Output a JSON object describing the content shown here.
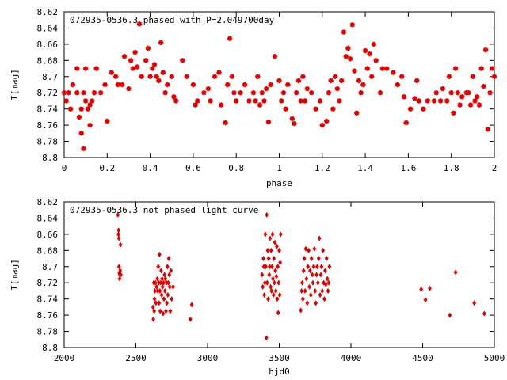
{
  "chart_data": [
    {
      "type": "scatter",
      "title": "072935-0536.3 phased with P=2.049700day",
      "xlabel": "phase",
      "ylabel": "I[mag]",
      "xlim": [
        0,
        2
      ],
      "ylim": [
        8.62,
        8.8
      ],
      "y_inverted": true,
      "grid": false,
      "marker_color": "#e00000",
      "marker": "star",
      "x_ticks": [
        "0",
        "0.2",
        "0.4",
        "0.6",
        "0.8",
        "1",
        "1.2",
        "1.4",
        "1.6",
        "1.8",
        "2"
      ],
      "y_ticks": [
        "8.62",
        "8.64",
        "8.66",
        "8.68",
        "8.7",
        "8.72",
        "8.74",
        "8.76",
        "8.78",
        "8.8"
      ],
      "x_tick_values": [
        0,
        0.2,
        0.4,
        0.6,
        0.8,
        1,
        1.2,
        1.4,
        1.6,
        1.8,
        2
      ],
      "y_tick_values": [
        8.62,
        8.64,
        8.66,
        8.68,
        8.7,
        8.72,
        8.74,
        8.76,
        8.78,
        8.8
      ],
      "points": [
        [
          0.0,
          8.72
        ],
        [
          0.01,
          8.73
        ],
        [
          0.02,
          8.72
        ],
        [
          0.03,
          8.74
        ],
        [
          0.04,
          8.71
        ],
        [
          0.06,
          8.72
        ],
        [
          0.06,
          8.69
        ],
        [
          0.07,
          8.75
        ],
        [
          0.08,
          8.77
        ],
        [
          0.08,
          8.74
        ],
        [
          0.09,
          8.72
        ],
        [
          0.09,
          8.789
        ],
        [
          0.1,
          8.69
        ],
        [
          0.1,
          8.73
        ],
        [
          0.11,
          8.74
        ],
        [
          0.12,
          8.735
        ],
        [
          0.12,
          8.76
        ],
        [
          0.13,
          8.73
        ],
        [
          0.14,
          8.72
        ],
        [
          0.15,
          8.69
        ],
        [
          0.17,
          8.72
        ],
        [
          0.19,
          8.71
        ],
        [
          0.2,
          8.755
        ],
        [
          0.22,
          8.695
        ],
        [
          0.24,
          8.7
        ],
        [
          0.25,
          8.71
        ],
        [
          0.27,
          8.71
        ],
        [
          0.28,
          8.675
        ],
        [
          0.3,
          8.715
        ],
        [
          0.31,
          8.68
        ],
        [
          0.32,
          8.69
        ],
        [
          0.33,
          8.67
        ],
        [
          0.34,
          8.688
        ],
        [
          0.35,
          8.635
        ],
        [
          0.36,
          8.7
        ],
        [
          0.38,
          8.68
        ],
        [
          0.39,
          8.665
        ],
        [
          0.4,
          8.7
        ],
        [
          0.41,
          8.69
        ],
        [
          0.42,
          8.685
        ],
        [
          0.43,
          8.7
        ],
        [
          0.44,
          8.705
        ],
        [
          0.45,
          8.658
        ],
        [
          0.46,
          8.695
        ],
        [
          0.47,
          8.72
        ],
        [
          0.48,
          8.71
        ],
        [
          0.5,
          8.7
        ],
        [
          0.51,
          8.725
        ],
        [
          0.52,
          8.73
        ],
        [
          0.55,
          8.68
        ],
        [
          0.57,
          8.7
        ],
        [
          0.6,
          8.71
        ],
        [
          0.61,
          8.735
        ],
        [
          0.62,
          8.73
        ],
        [
          0.65,
          8.72
        ],
        [
          0.67,
          8.715
        ],
        [
          0.68,
          8.73
        ],
        [
          0.7,
          8.7
        ],
        [
          0.72,
          8.695
        ],
        [
          0.73,
          8.735
        ],
        [
          0.75,
          8.757
        ],
        [
          0.76,
          8.71
        ],
        [
          0.77,
          8.653
        ],
        [
          0.78,
          8.7
        ],
        [
          0.79,
          8.72
        ],
        [
          0.8,
          8.73
        ],
        [
          0.82,
          8.72
        ],
        [
          0.84,
          8.71
        ],
        [
          0.86,
          8.73
        ],
        [
          0.88,
          8.72
        ],
        [
          0.89,
          8.73
        ],
        [
          0.9,
          8.7
        ],
        [
          0.91,
          8.735
        ],
        [
          0.92,
          8.72
        ],
        [
          0.93,
          8.73
        ],
        [
          0.94,
          8.715
        ],
        [
          0.95,
          8.756
        ],
        [
          0.96,
          8.71
        ],
        [
          0.98,
          8.675
        ],
        [
          1.0,
          8.705
        ],
        [
          1.01,
          8.73
        ],
        [
          1.02,
          8.72
        ],
        [
          1.03,
          8.74
        ],
        [
          1.04,
          8.71
        ],
        [
          1.06,
          8.752
        ],
        [
          1.07,
          8.758
        ],
        [
          1.08,
          8.72
        ],
        [
          1.09,
          8.705
        ],
        [
          1.1,
          8.73
        ],
        [
          1.11,
          8.7
        ],
        [
          1.12,
          8.73
        ],
        [
          1.13,
          8.715
        ],
        [
          1.15,
          8.72
        ],
        [
          1.17,
          8.74
        ],
        [
          1.19,
          8.73
        ],
        [
          1.2,
          8.76
        ],
        [
          1.22,
          8.755
        ],
        [
          1.23,
          8.72
        ],
        [
          1.24,
          8.705
        ],
        [
          1.25,
          8.74
        ],
        [
          1.26,
          8.7
        ],
        [
          1.27,
          8.715
        ],
        [
          1.28,
          8.73
        ],
        [
          1.29,
          8.705
        ],
        [
          1.3,
          8.645
        ],
        [
          1.31,
          8.675
        ],
        [
          1.32,
          8.665
        ],
        [
          1.33,
          8.678
        ],
        [
          1.34,
          8.636
        ],
        [
          1.35,
          8.693
        ],
        [
          1.36,
          8.745
        ],
        [
          1.37,
          8.705
        ],
        [
          1.38,
          8.72
        ],
        [
          1.39,
          8.71
        ],
        [
          1.4,
          8.668
        ],
        [
          1.41,
          8.69
        ],
        [
          1.42,
          8.672
        ],
        [
          1.43,
          8.7
        ],
        [
          1.44,
          8.66
        ],
        [
          1.45,
          8.68
        ],
        [
          1.47,
          8.72
        ],
        [
          1.48,
          8.69
        ],
        [
          1.5,
          8.69
        ],
        [
          1.53,
          8.695
        ],
        [
          1.55,
          8.71
        ],
        [
          1.57,
          8.7
        ],
        [
          1.58,
          8.725
        ],
        [
          1.59,
          8.757
        ],
        [
          1.61,
          8.74
        ],
        [
          1.63,
          8.727
        ],
        [
          1.64,
          8.705
        ],
        [
          1.65,
          8.73
        ],
        [
          1.67,
          8.74
        ],
        [
          1.69,
          8.73
        ],
        [
          1.72,
          8.73
        ],
        [
          1.73,
          8.72
        ],
        [
          1.75,
          8.73
        ],
        [
          1.76,
          8.715
        ],
        [
          1.78,
          8.73
        ],
        [
          1.79,
          8.7
        ],
        [
          1.8,
          8.72
        ],
        [
          1.81,
          8.745
        ],
        [
          1.82,
          8.69
        ],
        [
          1.83,
          8.72
        ],
        [
          1.84,
          8.735
        ],
        [
          1.85,
          8.725
        ],
        [
          1.87,
          8.72
        ],
        [
          1.88,
          8.72
        ],
        [
          1.89,
          8.735
        ],
        [
          1.9,
          8.7
        ],
        [
          1.91,
          8.73
        ],
        [
          1.92,
          8.725
        ],
        [
          1.93,
          8.735
        ],
        [
          1.94,
          8.69
        ],
        [
          1.95,
          8.712
        ],
        [
          1.96,
          8.667
        ],
        [
          1.97,
          8.765
        ],
        [
          1.98,
          8.72
        ],
        [
          1.99,
          8.69
        ],
        [
          2.0,
          8.7
        ]
      ]
    },
    {
      "type": "scatter",
      "title": "072935-0536.3 not phased light curve",
      "xlabel": "hjd0",
      "ylabel": "I[mag]",
      "xlim": [
        2000,
        5000
      ],
      "ylim": [
        8.62,
        8.8
      ],
      "y_inverted": true,
      "grid": false,
      "marker_color": "#e00000",
      "marker": "diamond",
      "x_ticks": [
        "2000",
        "2500",
        "3000",
        "3500",
        "4000",
        "4500",
        "5000"
      ],
      "y_ticks": [
        "8.62",
        "8.64",
        "8.66",
        "8.68",
        "8.7",
        "8.72",
        "8.74",
        "8.76",
        "8.78",
        "8.8"
      ],
      "x_tick_values": [
        2000,
        2500,
        3000,
        3500,
        4000,
        4500,
        5000
      ],
      "y_tick_values": [
        8.62,
        8.64,
        8.66,
        8.68,
        8.7,
        8.72,
        8.74,
        8.76,
        8.78,
        8.8
      ],
      "points": [
        [
          2375,
          8.636
        ],
        [
          2378,
          8.66
        ],
        [
          2380,
          8.655
        ],
        [
          2382,
          8.665
        ],
        [
          2383,
          8.7
        ],
        [
          2385,
          8.708
        ],
        [
          2387,
          8.715
        ],
        [
          2389,
          8.71
        ],
        [
          2391,
          8.705
        ],
        [
          2393,
          8.673
        ],
        [
          2395,
          8.71
        ],
        [
          2620,
          8.75
        ],
        [
          2622,
          8.765
        ],
        [
          2625,
          8.72
        ],
        [
          2628,
          8.755
        ],
        [
          2630,
          8.74
        ],
        [
          2633,
          8.73
        ],
        [
          2636,
          8.72
        ],
        [
          2640,
          8.745
        ],
        [
          2645,
          8.725
        ],
        [
          2650,
          8.715
        ],
        [
          2653,
          8.73
        ],
        [
          2656,
          8.7
        ],
        [
          2660,
          8.72
        ],
        [
          2662,
          8.745
        ],
        [
          2665,
          8.685
        ],
        [
          2668,
          8.73
        ],
        [
          2670,
          8.755
        ],
        [
          2673,
          8.72
        ],
        [
          2676,
          8.705
        ],
        [
          2680,
          8.735
        ],
        [
          2683,
          8.715
        ],
        [
          2686,
          8.725
        ],
        [
          2690,
          8.758
        ],
        [
          2693,
          8.72
        ],
        [
          2696,
          8.74
        ],
        [
          2700,
          8.71
        ],
        [
          2703,
          8.73
        ],
        [
          2706,
          8.715
        ],
        [
          2710,
          8.755
        ],
        [
          2713,
          8.72
        ],
        [
          2716,
          8.745
        ],
        [
          2720,
          8.7
        ],
        [
          2723,
          8.735
        ],
        [
          2726,
          8.72
        ],
        [
          2730,
          8.69
        ],
        [
          2733,
          8.71
        ],
        [
          2736,
          8.725
        ],
        [
          2740,
          8.755
        ],
        [
          2745,
          8.705
        ],
        [
          2750,
          8.74
        ],
        [
          2760,
          8.725
        ],
        [
          2880,
          8.765
        ],
        [
          2890,
          8.747
        ],
        [
          3380,
          8.71
        ],
        [
          3385,
          8.725
        ],
        [
          3390,
          8.69
        ],
        [
          3393,
          8.7
        ],
        [
          3396,
          8.735
        ],
        [
          3400,
          8.72
        ],
        [
          3403,
          8.66
        ],
        [
          3406,
          8.7
        ],
        [
          3410,
          8.788
        ],
        [
          3413,
          8.636
        ],
        [
          3416,
          8.72
        ],
        [
          3420,
          8.68
        ],
        [
          3423,
          8.74
        ],
        [
          3426,
          8.69
        ],
        [
          3430,
          8.71
        ],
        [
          3433,
          8.7
        ],
        [
          3436,
          8.665
        ],
        [
          3440,
          8.725
        ],
        [
          3443,
          8.68
        ],
        [
          3446,
          8.73
        ],
        [
          3450,
          8.7
        ],
        [
          3453,
          8.66
        ],
        [
          3456,
          8.715
        ],
        [
          3460,
          8.735
        ],
        [
          3463,
          8.69
        ],
        [
          3466,
          8.72
        ],
        [
          3470,
          8.67
        ],
        [
          3473,
          8.705
        ],
        [
          3476,
          8.73
        ],
        [
          3480,
          8.712
        ],
        [
          3483,
          8.675
        ],
        [
          3486,
          8.74
        ],
        [
          3490,
          8.7
        ],
        [
          3493,
          8.757
        ],
        [
          3496,
          8.72
        ],
        [
          3500,
          8.68
        ],
        [
          3503,
          8.735
        ],
        [
          3506,
          8.695
        ],
        [
          3510,
          8.66
        ],
        [
          3650,
          8.754
        ],
        [
          3656,
          8.73
        ],
        [
          3660,
          8.72
        ],
        [
          3665,
          8.74
        ],
        [
          3670,
          8.705
        ],
        [
          3675,
          8.69
        ],
        [
          3680,
          8.73
        ],
        [
          3685,
          8.678
        ],
        [
          3690,
          8.715
        ],
        [
          3695,
          8.745
        ],
        [
          3700,
          8.7
        ],
        [
          3705,
          8.68
        ],
        [
          3710,
          8.725
        ],
        [
          3715,
          8.705
        ],
        [
          3720,
          8.735
        ],
        [
          3725,
          8.69
        ],
        [
          3730,
          8.71
        ],
        [
          3735,
          8.72
        ],
        [
          3740,
          8.7
        ],
        [
          3745,
          8.678
        ],
        [
          3750,
          8.73
        ],
        [
          3755,
          8.745
        ],
        [
          3760,
          8.71
        ],
        [
          3765,
          8.7
        ],
        [
          3770,
          8.72
        ],
        [
          3775,
          8.69
        ],
        [
          3780,
          8.665
        ],
        [
          3785,
          8.735
        ],
        [
          3790,
          8.71
        ],
        [
          3795,
          8.7
        ],
        [
          3800,
          8.73
        ],
        [
          3805,
          8.68
        ],
        [
          3810,
          8.72
        ],
        [
          3815,
          8.74
        ],
        [
          3820,
          8.705
        ],
        [
          3825,
          8.722
        ],
        [
          3830,
          8.69
        ],
        [
          3835,
          8.715
        ],
        [
          3840,
          8.73
        ],
        [
          3845,
          8.72
        ],
        [
          3850,
          8.7
        ],
        [
          4490,
          8.728
        ],
        [
          4520,
          8.741
        ],
        [
          4550,
          8.727
        ],
        [
          4690,
          8.76
        ],
        [
          4730,
          8.707
        ],
        [
          4860,
          8.745
        ],
        [
          4930,
          8.758
        ]
      ]
    }
  ]
}
